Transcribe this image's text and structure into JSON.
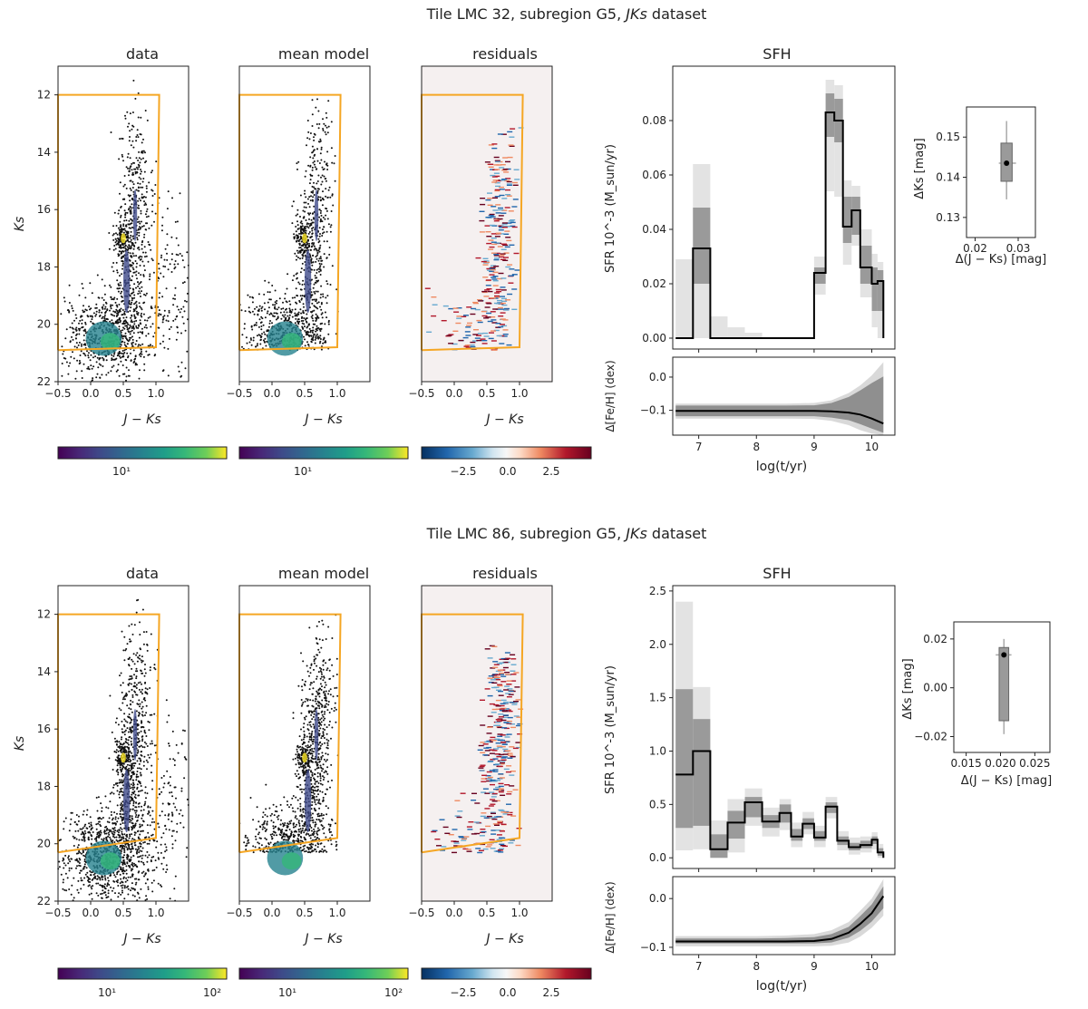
{
  "figure": {
    "panels_row": [
      {
        "title": "Tile LMC 32, subregion G5, JKs dataset",
        "title_parts": [
          "Tile LMC 32, subregion G5, ",
          "JKs",
          " dataset"
        ],
        "cmd_titles": [
          "data",
          "mean model",
          "residuals"
        ],
        "cmd_xlabel": "J − Ks",
        "cmd_ylabel": "Ks",
        "colorbar_ticks": [
          [
            "10¹"
          ],
          [
            "10¹"
          ],
          [
            "−2.5",
            "0.0",
            "2.5"
          ]
        ]
      },
      {
        "title": "Tile LMC 86, subregion G5, JKs dataset",
        "title_parts": [
          "Tile LMC 86, subregion G5, ",
          "JKs",
          " dataset"
        ],
        "cmd_titles": [
          "data",
          "mean model",
          "residuals"
        ],
        "cmd_xlabel": "J − Ks",
        "cmd_ylabel": "Ks",
        "colorbar_ticks": [
          [
            "10¹",
            "10²"
          ],
          [
            "10¹",
            "10²"
          ],
          [
            "−2.5",
            "0.0",
            "2.5"
          ]
        ]
      }
    ]
  },
  "chart_data": [
    {
      "type": "scatter",
      "panel": "Tile LMC 32 CMD (data / mean model / residuals)",
      "xlim": [
        -0.5,
        1.5
      ],
      "ylim": [
        22,
        11
      ],
      "x_ticks": [
        -0.5,
        0.0,
        0.5,
        1.0
      ],
      "y_ticks": [
        12,
        14,
        16,
        18,
        20,
        22
      ],
      "selection_box": {
        "x": [
          -0.5,
          -0.5,
          1.05,
          1.05,
          1.0,
          -0.5
        ],
        "y": [
          20.9,
          12.0,
          12.0,
          12.0,
          20.8,
          20.9
        ]
      },
      "colorbars": [
        {
          "scale": "log",
          "cmap": "viridis",
          "ticks": [
            "10^1"
          ]
        },
        {
          "scale": "log",
          "cmap": "viridis",
          "ticks": [
            "10^1"
          ]
        },
        {
          "scale": "linear",
          "cmap": "RdBu_r",
          "range": [
            -4.2,
            4.2
          ],
          "ticks": [
            -2.5,
            0.0,
            2.5
          ]
        }
      ]
    },
    {
      "type": "line",
      "panel": "Tile LMC 32 SFH",
      "title": "SFH",
      "xlabel": "log(t/yr)",
      "ylabel": "SFR 10^-3 (M_sun/yr)",
      "xlim": [
        6.55,
        10.4
      ],
      "ylim": [
        -0.004,
        0.1
      ],
      "x_ticks": [
        7,
        8,
        9,
        10
      ],
      "y_ticks": [
        0.0,
        0.02,
        0.04,
        0.06,
        0.08
      ],
      "y_tick_labels": [
        "0.00",
        "0.02",
        "0.04",
        "0.06",
        "0.08"
      ],
      "bins": [
        {
          "x0": 6.6,
          "x1": 6.9,
          "y": 0.0,
          "lo1": 0.0,
          "hi1": 0.0,
          "lo2": 0.0,
          "hi2": 0.029
        },
        {
          "x0": 6.9,
          "x1": 7.2,
          "y": 0.033,
          "lo1": 0.02,
          "hi1": 0.048,
          "lo2": 0.0,
          "hi2": 0.064
        },
        {
          "x0": 7.2,
          "x1": 7.5,
          "y": 0.0,
          "lo1": 0.0,
          "hi1": 0.0,
          "lo2": 0.0,
          "hi2": 0.008
        },
        {
          "x0": 7.5,
          "x1": 7.8,
          "y": 0.0,
          "lo1": 0.0,
          "hi1": 0.0,
          "lo2": 0.0,
          "hi2": 0.004
        },
        {
          "x0": 7.8,
          "x1": 8.1,
          "y": 0.0,
          "lo1": 0.0,
          "hi1": 0.0,
          "lo2": 0.0,
          "hi2": 0.002
        },
        {
          "x0": 8.1,
          "x1": 8.4,
          "y": 0.0,
          "lo1": 0.0,
          "hi1": 0.0,
          "lo2": 0.0,
          "hi2": 0.0
        },
        {
          "x0": 8.4,
          "x1": 8.7,
          "y": 0.0,
          "lo1": 0.0,
          "hi1": 0.0,
          "lo2": 0.0,
          "hi2": 0.0
        },
        {
          "x0": 8.7,
          "x1": 9.0,
          "y": 0.0,
          "lo1": 0.0,
          "hi1": 0.0,
          "lo2": 0.0,
          "hi2": 0.0
        },
        {
          "x0": 9.0,
          "x1": 9.2,
          "y": 0.024,
          "lo1": 0.02,
          "hi1": 0.026,
          "lo2": 0.016,
          "hi2": 0.03
        },
        {
          "x0": 9.2,
          "x1": 9.35,
          "y": 0.083,
          "lo1": 0.074,
          "hi1": 0.09,
          "lo2": 0.054,
          "hi2": 0.095
        },
        {
          "x0": 9.35,
          "x1": 9.5,
          "y": 0.08,
          "lo1": 0.072,
          "hi1": 0.088,
          "lo2": 0.052,
          "hi2": 0.093
        },
        {
          "x0": 9.5,
          "x1": 9.65,
          "y": 0.041,
          "lo1": 0.035,
          "hi1": 0.052,
          "lo2": 0.027,
          "hi2": 0.058
        },
        {
          "x0": 9.65,
          "x1": 9.8,
          "y": 0.047,
          "lo1": 0.038,
          "hi1": 0.052,
          "lo2": 0.034,
          "hi2": 0.056
        },
        {
          "x0": 9.8,
          "x1": 10.0,
          "y": 0.026,
          "lo1": 0.02,
          "hi1": 0.034,
          "lo2": 0.015,
          "hi2": 0.04
        },
        {
          "x0": 10.0,
          "x1": 10.1,
          "y": 0.02,
          "lo1": 0.01,
          "hi1": 0.026,
          "lo2": 0.004,
          "hi2": 0.031
        },
        {
          "x0": 10.1,
          "x1": 10.2,
          "y": 0.021,
          "lo1": 0.01,
          "hi1": 0.025,
          "lo2": 0.0,
          "hi2": 0.028
        }
      ]
    },
    {
      "type": "area",
      "panel": "Tile LMC 32 metallicity",
      "xlabel": "log(t/yr)",
      "ylabel": "Δ[Fe/H] (dex)",
      "xlim": [
        6.55,
        10.4
      ],
      "ylim": [
        -0.175,
        0.06
      ],
      "x_ticks": [
        7,
        8,
        9,
        10
      ],
      "y_ticks": [
        0.0,
        -0.1
      ],
      "y_tick_labels": [
        "0.0",
        "−0.1"
      ],
      "x": [
        6.6,
        7.0,
        7.5,
        8.0,
        8.5,
        9.0,
        9.3,
        9.6,
        9.8,
        10.0,
        10.2
      ],
      "median": [
        -0.102,
        -0.102,
        -0.102,
        -0.102,
        -0.102,
        -0.102,
        -0.103,
        -0.107,
        -0.113,
        -0.125,
        -0.14
      ],
      "band1_lo": [
        -0.118,
        -0.118,
        -0.118,
        -0.118,
        -0.118,
        -0.118,
        -0.122,
        -0.13,
        -0.142,
        -0.155,
        -0.168
      ],
      "band1_hi": [
        -0.086,
        -0.086,
        -0.086,
        -0.086,
        -0.086,
        -0.085,
        -0.078,
        -0.06,
        -0.04,
        -0.018,
        0.002
      ],
      "band2_lo": [
        -0.125,
        -0.125,
        -0.125,
        -0.125,
        -0.125,
        -0.126,
        -0.132,
        -0.145,
        -0.16,
        -0.17,
        -0.175
      ],
      "band2_hi": [
        -0.08,
        -0.08,
        -0.08,
        -0.08,
        -0.08,
        -0.078,
        -0.07,
        -0.048,
        -0.025,
        0.005,
        0.045
      ]
    },
    {
      "type": "scatter",
      "panel": "Tile LMC 32 offsets",
      "xlabel": "Δ(J − Ks) [mag]",
      "ylabel": "ΔKs [mag]",
      "xlim": [
        0.018,
        0.034
      ],
      "ylim": [
        0.125,
        0.1575
      ],
      "x_ticks": [
        0.02,
        0.03
      ],
      "x_tick_labels": [
        "0.02",
        "0.03"
      ],
      "y_ticks": [
        0.13,
        0.14,
        0.15
      ],
      "y_tick_labels": [
        "0.13",
        "0.14",
        "0.15"
      ],
      "point": {
        "x": 0.0273,
        "y": 0.1435
      },
      "box": {
        "x": [
          0.026,
          0.0286
        ],
        "y": [
          0.139,
          0.1485
        ]
      },
      "whisker_x": [
        0.0255,
        0.0295
      ],
      "whisker_y": [
        0.1345,
        0.154
      ]
    },
    {
      "type": "scatter",
      "panel": "Tile LMC 86 CMD (data / mean model / residuals)",
      "xlim": [
        -0.5,
        1.5
      ],
      "ylim": [
        22,
        11
      ],
      "x_ticks": [
        -0.5,
        0.0,
        0.5,
        1.0
      ],
      "y_ticks": [
        12,
        14,
        16,
        18,
        20,
        22
      ],
      "selection_box": {
        "x": [
          -0.5,
          -0.5,
          1.05,
          1.05,
          1.0,
          -0.5
        ],
        "y": [
          20.3,
          12.0,
          12.0,
          12.0,
          19.8,
          20.3
        ]
      },
      "colorbars": [
        {
          "scale": "log",
          "cmap": "viridis",
          "ticks": [
            "10^1",
            "10^2"
          ]
        },
        {
          "scale": "log",
          "cmap": "viridis",
          "ticks": [
            "10^1",
            "10^2"
          ]
        },
        {
          "scale": "linear",
          "cmap": "RdBu_r",
          "range": [
            -4.2,
            4.2
          ],
          "ticks": [
            -2.5,
            0.0,
            2.5
          ]
        }
      ]
    },
    {
      "type": "line",
      "panel": "Tile LMC 86 SFH",
      "title": "SFH",
      "xlabel": "log(t/yr)",
      "ylabel": "SFR 10^-3 (M_sun/yr)",
      "xlim": [
        6.55,
        10.4
      ],
      "ylim": [
        -0.1,
        2.55
      ],
      "x_ticks": [
        7,
        8,
        9,
        10
      ],
      "y_ticks": [
        0.0,
        0.5,
        1.0,
        1.5,
        2.0,
        2.5
      ],
      "y_tick_labels": [
        "0.0",
        "0.5",
        "1.0",
        "1.5",
        "2.0",
        "2.5"
      ],
      "bins": [
        {
          "x0": 6.6,
          "x1": 6.9,
          "y": 0.78,
          "lo1": 0.28,
          "hi1": 1.58,
          "lo2": 0.07,
          "hi2": 2.4
        },
        {
          "x0": 6.9,
          "x1": 7.2,
          "y": 1.0,
          "lo1": 0.3,
          "hi1": 1.3,
          "lo2": 0.08,
          "hi2": 1.6
        },
        {
          "x0": 7.2,
          "x1": 7.5,
          "y": 0.08,
          "lo1": 0.0,
          "hi1": 0.22,
          "lo2": 0.0,
          "hi2": 0.35
        },
        {
          "x0": 7.5,
          "x1": 7.8,
          "y": 0.33,
          "lo1": 0.18,
          "hi1": 0.44,
          "lo2": 0.05,
          "hi2": 0.55
        },
        {
          "x0": 7.8,
          "x1": 8.1,
          "y": 0.52,
          "lo1": 0.38,
          "hi1": 0.57,
          "lo2": 0.3,
          "hi2": 0.65
        },
        {
          "x0": 8.1,
          "x1": 8.4,
          "y": 0.34,
          "lo1": 0.28,
          "hi1": 0.4,
          "lo2": 0.2,
          "hi2": 0.47
        },
        {
          "x0": 8.4,
          "x1": 8.6,
          "y": 0.42,
          "lo1": 0.33,
          "hi1": 0.5,
          "lo2": 0.26,
          "hi2": 0.55
        },
        {
          "x0": 8.6,
          "x1": 8.8,
          "y": 0.2,
          "lo1": 0.16,
          "hi1": 0.27,
          "lo2": 0.1,
          "hi2": 0.33
        },
        {
          "x0": 8.8,
          "x1": 9.0,
          "y": 0.32,
          "lo1": 0.27,
          "hi1": 0.37,
          "lo2": 0.22,
          "hi2": 0.43
        },
        {
          "x0": 9.0,
          "x1": 9.2,
          "y": 0.19,
          "lo1": 0.16,
          "hi1": 0.25,
          "lo2": 0.1,
          "hi2": 0.3
        },
        {
          "x0": 9.2,
          "x1": 9.4,
          "y": 0.48,
          "lo1": 0.42,
          "hi1": 0.52,
          "lo2": 0.37,
          "hi2": 0.57
        },
        {
          "x0": 9.4,
          "x1": 9.6,
          "y": 0.16,
          "lo1": 0.12,
          "hi1": 0.2,
          "lo2": 0.07,
          "hi2": 0.25
        },
        {
          "x0": 9.6,
          "x1": 9.8,
          "y": 0.1,
          "lo1": 0.07,
          "hi1": 0.14,
          "lo2": 0.03,
          "hi2": 0.19
        },
        {
          "x0": 9.8,
          "x1": 10.0,
          "y": 0.12,
          "lo1": 0.09,
          "hi1": 0.16,
          "lo2": 0.05,
          "hi2": 0.2
        },
        {
          "x0": 10.0,
          "x1": 10.1,
          "y": 0.17,
          "lo1": 0.13,
          "hi1": 0.2,
          "lo2": 0.08,
          "hi2": 0.24
        },
        {
          "x0": 10.1,
          "x1": 10.2,
          "y": 0.05,
          "lo1": 0.02,
          "hi1": 0.09,
          "lo2": 0.0,
          "hi2": 0.13
        }
      ]
    },
    {
      "type": "area",
      "panel": "Tile LMC 86 metallicity",
      "xlabel": "log(t/yr)",
      "ylabel": "Δ[Fe/H] (dex)",
      "xlim": [
        6.55,
        10.4
      ],
      "ylim": [
        -0.115,
        0.045
      ],
      "x_ticks": [
        7,
        8,
        9,
        10
      ],
      "y_ticks": [
        0.0,
        -0.1
      ],
      "y_tick_labels": [
        "0.0",
        "−0.1"
      ],
      "x": [
        6.6,
        7.0,
        7.5,
        8.0,
        8.5,
        9.0,
        9.3,
        9.6,
        9.8,
        10.0,
        10.2
      ],
      "median": [
        -0.088,
        -0.088,
        -0.088,
        -0.088,
        -0.088,
        -0.087,
        -0.083,
        -0.07,
        -0.052,
        -0.03,
        0.005
      ],
      "band1_lo": [
        -0.092,
        -0.092,
        -0.092,
        -0.092,
        -0.092,
        -0.092,
        -0.09,
        -0.08,
        -0.066,
        -0.047,
        -0.02
      ],
      "band1_hi": [
        -0.082,
        -0.082,
        -0.082,
        -0.082,
        -0.081,
        -0.079,
        -0.073,
        -0.058,
        -0.036,
        -0.012,
        0.025
      ],
      "band2_lo": [
        -0.098,
        -0.098,
        -0.098,
        -0.098,
        -0.098,
        -0.098,
        -0.097,
        -0.09,
        -0.078,
        -0.06,
        -0.035
      ],
      "band2_hi": [
        -0.077,
        -0.077,
        -0.077,
        -0.077,
        -0.076,
        -0.073,
        -0.065,
        -0.048,
        -0.025,
        0.0,
        0.04
      ]
    },
    {
      "type": "scatter",
      "panel": "Tile LMC 86 offsets",
      "xlabel": "Δ(J − Ks) [mag]",
      "ylabel": "ΔKs [mag]",
      "xlim": [
        0.0132,
        0.0272
      ],
      "ylim": [
        -0.0265,
        0.027
      ],
      "x_ticks": [
        0.015,
        0.02,
        0.025
      ],
      "x_tick_labels": [
        "0.015",
        "0.020",
        "0.025"
      ],
      "y_ticks": [
        -0.02,
        0.0,
        0.02
      ],
      "y_tick_labels": [
        "−0.02",
        "0.00",
        "0.02"
      ],
      "point": {
        "x": 0.0205,
        "y": 0.0135
      },
      "box": {
        "x": [
          0.0198,
          0.0212
        ],
        "y": [
          -0.0135,
          0.0165
        ]
      },
      "whisker_x": [
        0.0193,
        0.0216
      ],
      "whisker_y": [
        -0.019,
        0.02
      ]
    }
  ]
}
